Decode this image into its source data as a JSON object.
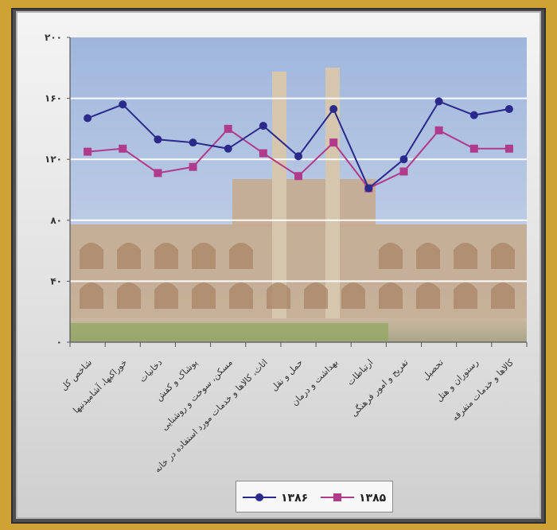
{
  "chart_data": {
    "type": "line",
    "categories": [
      "شاخص کل",
      "خوراکیها، آشامیدنیها",
      "دخانیات",
      "پوشاک و کفش",
      "مسکن، سوخت و روشنایی",
      "اثاث، کالاها و خدمات مورد استفاده در خانه",
      "حمل و نقل",
      "بهداشت و درمان",
      "ارتباطات",
      "تفریح و امور فرهنگی",
      "تحصیل",
      "رستوران و هتل",
      "کالاها و خدمات متفرقه"
    ],
    "series": [
      {
        "name": "۱۳۸۶",
        "color": "#2a2a8c",
        "marker": "circle",
        "values": [
          147,
          156,
          133,
          131,
          127,
          142,
          122,
          153,
          101,
          120,
          158,
          149,
          153
        ]
      },
      {
        "name": "۱۳۸۵",
        "color": "#b03a8c",
        "marker": "square",
        "values": [
          125,
          127,
          111,
          115,
          140,
          124,
          109,
          131,
          101,
          112,
          139,
          127,
          127
        ]
      }
    ],
    "ylim": [
      0,
      200
    ],
    "yticks": [
      0,
      40,
      80,
      120,
      160,
      200
    ],
    "ytick_labels": [
      "۰",
      "۴۰",
      "۸۰",
      "۱۲۰",
      "۱۶۰",
      "۲۰۰"
    ],
    "grid": true,
    "legend_position": "bottom-center"
  }
}
